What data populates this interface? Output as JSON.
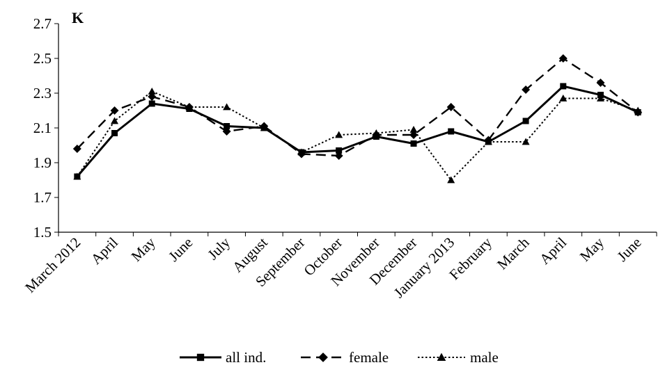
{
  "chart_data": {
    "type": "line",
    "title": "",
    "ylabel": "K",
    "xlabel": "",
    "ylim": [
      1.5,
      2.7
    ],
    "yticks": [
      "1.5",
      "1.7",
      "1.9",
      "2.1",
      "2.3",
      "2.5",
      "2.7"
    ],
    "categories": [
      "March 2012",
      "April",
      "May",
      "June",
      "July",
      "August",
      "September",
      "October",
      "November",
      "December",
      "January 2013",
      "February",
      "March",
      "April",
      "May",
      "June"
    ],
    "grid": false,
    "legend_position": "bottom",
    "series": [
      {
        "name": "all ind.",
        "style": "solid",
        "marker": "square",
        "values": [
          1.82,
          2.07,
          2.24,
          2.21,
          2.11,
          2.1,
          1.96,
          1.97,
          2.05,
          2.01,
          2.08,
          2.02,
          2.14,
          2.34,
          2.29,
          2.19
        ]
      },
      {
        "name": "female",
        "style": "dashed",
        "marker": "diamond",
        "values": [
          1.98,
          2.2,
          2.28,
          2.22,
          2.08,
          2.11,
          1.95,
          1.94,
          2.06,
          2.06,
          2.22,
          2.03,
          2.32,
          2.5,
          2.36,
          2.19
        ]
      },
      {
        "name": "male",
        "style": "dotted",
        "marker": "triangle",
        "values": [
          1.82,
          2.14,
          2.31,
          2.22,
          2.22,
          2.1,
          1.96,
          2.06,
          2.07,
          2.09,
          1.8,
          2.02,
          2.02,
          2.27,
          2.27,
          2.2
        ]
      }
    ]
  }
}
